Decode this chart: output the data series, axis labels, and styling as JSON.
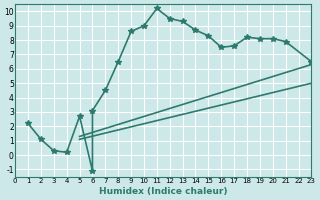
{
  "xlabel": "Humidex (Indice chaleur)",
  "ylabel": "",
  "xlim": [
    0,
    23
  ],
  "ylim": [
    -1.5,
    10.5
  ],
  "xticks": [
    0,
    1,
    2,
    3,
    4,
    5,
    6,
    7,
    8,
    9,
    10,
    11,
    12,
    13,
    14,
    15,
    16,
    17,
    18,
    19,
    20,
    21,
    22,
    23
  ],
  "yticks": [
    -1,
    0,
    1,
    2,
    3,
    4,
    5,
    6,
    7,
    8,
    9,
    10
  ],
  "background_color": "#cce8e8",
  "grid_color": "#ffffff",
  "line_color": "#2d7a6e",
  "curve1_x": [
    1,
    2,
    3,
    4,
    5,
    6,
    6,
    7,
    8,
    9,
    10,
    11,
    12,
    13,
    14,
    15,
    16,
    17,
    18,
    19,
    20,
    21,
    23
  ],
  "curve1_y": [
    2.2,
    1.1,
    0.3,
    0.2,
    2.7,
    -1.1,
    3.1,
    4.5,
    6.5,
    8.6,
    9.0,
    10.2,
    9.5,
    9.3,
    8.7,
    8.3,
    7.5,
    7.6,
    8.2,
    8.1,
    8.1,
    7.9,
    6.5
  ],
  "curve2_x": [
    5,
    23
  ],
  "curve2_y": [
    1.3,
    6.3
  ],
  "curve3_x": [
    5,
    23
  ],
  "curve3_y": [
    1.1,
    5.0
  ],
  "markersize": 4,
  "linewidth": 1.2
}
